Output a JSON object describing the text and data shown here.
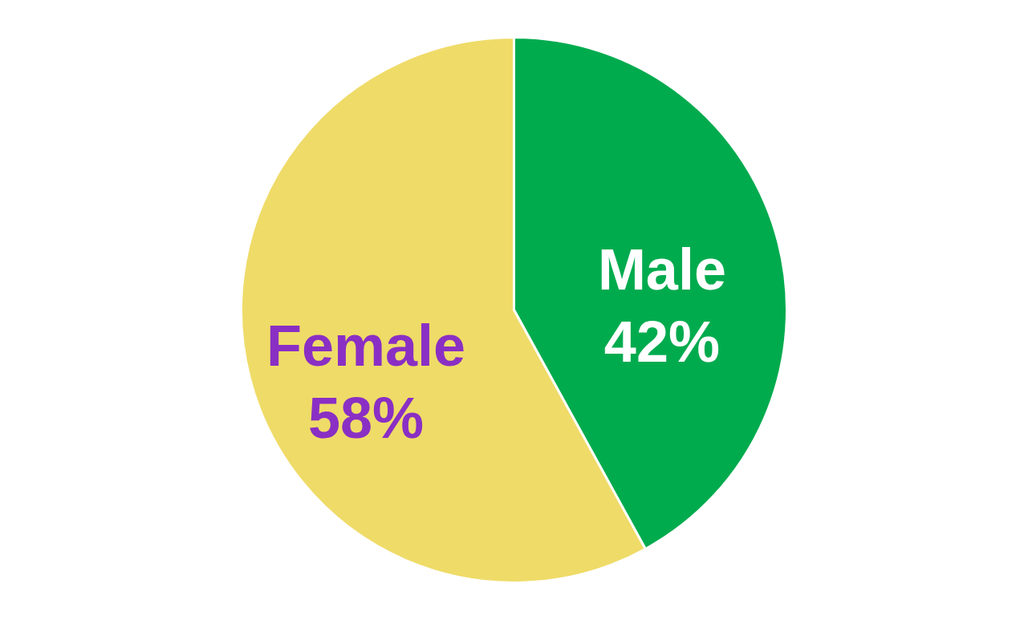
{
  "chart_data": {
    "type": "pie",
    "categories": [
      "Male",
      "Female"
    ],
    "values": [
      42,
      58
    ],
    "colors": [
      "#00ab4e",
      "#efdb68"
    ],
    "value_labels": [
      "42%",
      "58%"
    ]
  }
}
